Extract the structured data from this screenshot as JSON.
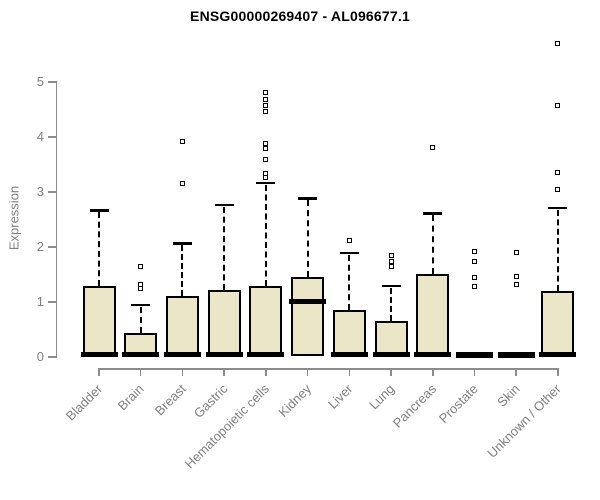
{
  "title": "ENSG00000269407 - AL096677.1",
  "colors": {
    "box_fill": "#ebe6c7",
    "box_border": "#000000",
    "median": "#000000",
    "axis": "#8c8c8c",
    "tick_label": "#808080",
    "title": "#000000",
    "background": "#ffffff"
  },
  "chart_data": {
    "type": "boxplot",
    "title": "ENSG00000269407 - AL096677.1",
    "xlabel": "",
    "ylabel": "Expression",
    "yticks": [
      0,
      1,
      2,
      3,
      4,
      5
    ],
    "ylim": [
      0,
      5.8
    ],
    "grid": false,
    "legend": false,
    "categories": [
      "Bladder",
      "Brain",
      "Breast",
      "Gastric",
      "Hematopoietic cells",
      "Kidney",
      "Liver",
      "Lung",
      "Pancreas",
      "Prostate",
      "Skin",
      "Unknown / Other"
    ],
    "series": [
      {
        "name": "Bladder",
        "q1": 0,
        "median": 0.03,
        "q3": 1.28,
        "whisker_low": 0,
        "whisker_high": 2.65,
        "outliers": []
      },
      {
        "name": "Brain",
        "q1": 0,
        "median": 0.03,
        "q3": 0.42,
        "whisker_low": 0,
        "whisker_high": 0.93,
        "outliers": [
          1.22,
          1.3,
          1.62
        ]
      },
      {
        "name": "Breast",
        "q1": 0,
        "median": 0.03,
        "q3": 1.1,
        "whisker_low": 0,
        "whisker_high": 2.05,
        "outliers": [
          3.13,
          3.9
        ]
      },
      {
        "name": "Gastric",
        "q1": 0,
        "median": 0.03,
        "q3": 1.2,
        "whisker_low": 0,
        "whisker_high": 2.75,
        "outliers": []
      },
      {
        "name": "Hematopoietic cells",
        "q1": 0,
        "median": 0.03,
        "q3": 1.28,
        "whisker_low": 0,
        "whisker_high": 3.15,
        "outliers": [
          3.24,
          3.32,
          3.58,
          3.78,
          3.86,
          4.44,
          4.56,
          4.67,
          4.79
        ]
      },
      {
        "name": "Kidney",
        "q1": 0,
        "median": 1.0,
        "q3": 1.43,
        "whisker_low": 0,
        "whisker_high": 2.87,
        "outliers": []
      },
      {
        "name": "Liver",
        "q1": 0,
        "median": 0.03,
        "q3": 0.84,
        "whisker_low": 0,
        "whisker_high": 1.88,
        "outliers": [
          2.1
        ]
      },
      {
        "name": "Lung",
        "q1": 0,
        "median": 0.03,
        "q3": 0.63,
        "whisker_low": 0,
        "whisker_high": 1.28,
        "outliers": [
          1.63,
          1.72,
          1.82
        ]
      },
      {
        "name": "Pancreas",
        "q1": 0,
        "median": 0.03,
        "q3": 1.5,
        "whisker_low": 0,
        "whisker_high": 2.6,
        "outliers": [
          3.8
        ]
      },
      {
        "name": "Prostate",
        "q1": 0,
        "median": 0.02,
        "q3": 0.02,
        "whisker_low": 0,
        "whisker_high": 0.02,
        "outliers": [
          1.26,
          1.42,
          1.72,
          1.9
        ]
      },
      {
        "name": "Skin",
        "q1": 0,
        "median": 0.02,
        "q3": 0.02,
        "whisker_low": 0,
        "whisker_high": 0.02,
        "outliers": [
          1.3,
          1.45,
          1.88
        ]
      },
      {
        "name": "Unknown / Other",
        "q1": 0,
        "median": 0.03,
        "q3": 1.18,
        "whisker_low": 0,
        "whisker_high": 2.7,
        "outliers": [
          3.02,
          3.34,
          4.56,
          5.68
        ]
      }
    ]
  }
}
